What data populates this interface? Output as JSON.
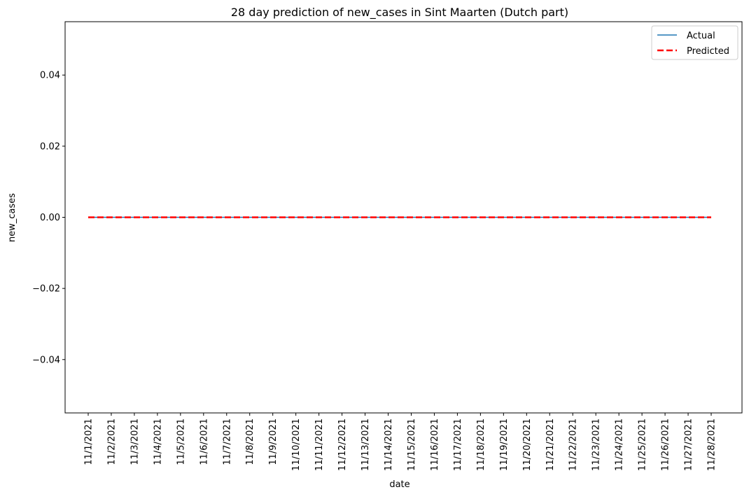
{
  "chart_data": {
    "type": "line",
    "title": "28 day prediction of new_cases in Sint Maarten (Dutch part)",
    "xlabel": "date",
    "ylabel": "new_cases",
    "categories": [
      "11/1/2021",
      "11/2/2021",
      "11/3/2021",
      "11/4/2021",
      "11/5/2021",
      "11/6/2021",
      "11/7/2021",
      "11/8/2021",
      "11/9/2021",
      "11/10/2021",
      "11/11/2021",
      "11/12/2021",
      "11/13/2021",
      "11/14/2021",
      "11/15/2021",
      "11/16/2021",
      "11/17/2021",
      "11/18/2021",
      "11/19/2021",
      "11/20/2021",
      "11/21/2021",
      "11/22/2021",
      "11/23/2021",
      "11/24/2021",
      "11/25/2021",
      "11/26/2021",
      "11/27/2021",
      "11/28/2021"
    ],
    "ylim": [
      -0.055,
      0.055
    ],
    "yticks": [
      -0.04,
      -0.02,
      0.0,
      0.02,
      0.04
    ],
    "ytick_labels": [
      "−0.04",
      "−0.02",
      "0.00",
      "0.02",
      "0.04"
    ],
    "series": [
      {
        "name": "Actual",
        "color": "#1f77b4",
        "style": "solid",
        "values": [
          0,
          0,
          0,
          0,
          0,
          0,
          0,
          0,
          0,
          0,
          0,
          0,
          0,
          0,
          0,
          0,
          0,
          0,
          0,
          0,
          0,
          0,
          0,
          0,
          0,
          0,
          0,
          0
        ]
      },
      {
        "name": "Predicted",
        "color": "#ff0000",
        "style": "dashed",
        "values": [
          0,
          0,
          0,
          0,
          0,
          0,
          0,
          0,
          0,
          0,
          0,
          0,
          0,
          0,
          0,
          0,
          0,
          0,
          0,
          0,
          0,
          0,
          0,
          0,
          0,
          0,
          0,
          0
        ]
      }
    ],
    "legend_position": "top-right",
    "grid": false
  }
}
